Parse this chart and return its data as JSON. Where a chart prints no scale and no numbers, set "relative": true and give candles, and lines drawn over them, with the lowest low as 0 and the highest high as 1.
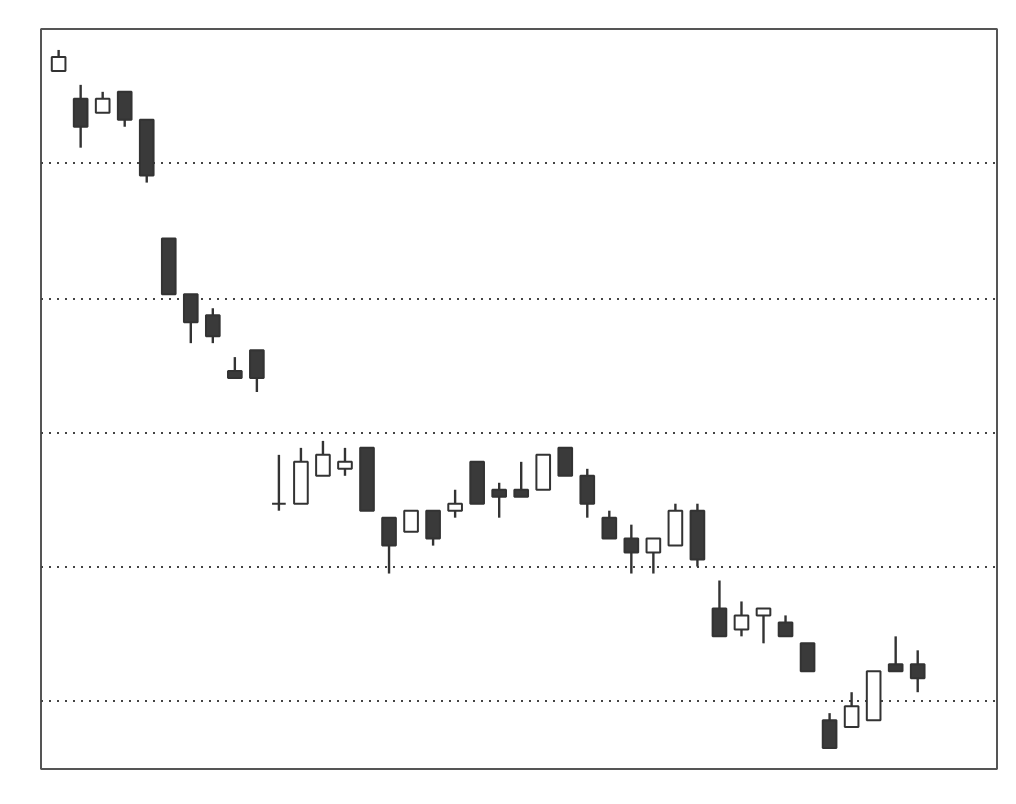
{
  "chart_data": {
    "type": "candlestick",
    "relative": true,
    "grid": "y",
    "categories": [
      null,
      null,
      null,
      null,
      null,
      null,
      null,
      null,
      null,
      null,
      null,
      null,
      null,
      null,
      null,
      null,
      null,
      null,
      null,
      null,
      null,
      null,
      null,
      null,
      null,
      null,
      null,
      null,
      null,
      null,
      null,
      null,
      null,
      null,
      null,
      null,
      null,
      null,
      null,
      null
    ],
    "ohlc": [
      [
        0.97,
        1,
        0.97,
        0.99
      ],
      [
        0.93,
        0.95,
        0.86,
        0.89
      ],
      [
        0.91,
        0.94,
        0.91,
        0.93
      ],
      [
        0.94,
        0.94,
        0.89,
        0.9
      ],
      [
        0.9,
        0.9,
        0.81,
        0.82
      ],
      [
        0.73,
        0.73,
        0.65,
        0.65
      ],
      [
        0.65,
        0.65,
        0.58,
        0.61
      ],
      [
        0.62,
        0.63,
        0.58,
        0.59
      ],
      [
        0.54,
        0.56,
        0.53,
        0.53
      ],
      [
        0.57,
        0.57,
        0.51,
        0.53
      ],
      [
        0.35,
        0.42,
        0.34,
        0.35
      ],
      [
        0.35,
        0.43,
        0.35,
        0.41
      ],
      [
        0.39,
        0.44,
        0.39,
        0.42
      ],
      [
        0.4,
        0.43,
        0.39,
        0.41
      ],
      [
        0.43,
        0.43,
        0.34,
        0.34
      ],
      [
        0.33,
        0.33,
        0.25,
        0.29
      ],
      [
        0.31,
        0.34,
        0.31,
        0.34
      ],
      [
        0.34,
        0.34,
        0.29,
        0.3
      ],
      [
        0.34,
        0.37,
        0.33,
        0.35
      ],
      [
        0.41,
        0.41,
        0.35,
        0.35
      ],
      [
        0.37,
        0.38,
        0.33,
        0.36
      ],
      [
        0.37,
        0.41,
        0.36,
        0.36
      ],
      [
        0.37,
        0.42,
        0.37,
        0.42
      ],
      [
        0.43,
        0.43,
        0.39,
        0.39
      ],
      [
        0.39,
        0.4,
        0.33,
        0.35
      ],
      [
        0.33,
        0.34,
        0.3,
        0.3
      ],
      [
        0.3,
        0.32,
        0.25,
        0.28
      ],
      [
        0.28,
        0.3,
        0.25,
        0.3
      ],
      [
        0.29,
        0.35,
        0.29,
        0.34
      ],
      [
        0.34,
        0.35,
        0.26,
        0.27
      ],
      [
        0.2,
        0.24,
        0.16,
        0.16
      ],
      [
        0.17,
        0.21,
        0.16,
        0.19
      ],
      [
        0.19,
        0.2,
        0.15,
        0.2
      ],
      [
        0.18,
        0.19,
        0.16,
        0.16
      ],
      [
        0.15,
        0.15,
        0.11,
        0.11
      ],
      [
        0.04,
        0.05,
        0,
        0
      ],
      [
        0.03,
        0.08,
        0.03,
        0.06
      ],
      [
        0.04,
        0.11,
        0.04,
        0.11
      ],
      [
        0.12,
        0.16,
        0.11,
        0.11
      ],
      [
        0.12,
        0.14,
        0.08,
        0.1
      ]
    ]
  }
}
